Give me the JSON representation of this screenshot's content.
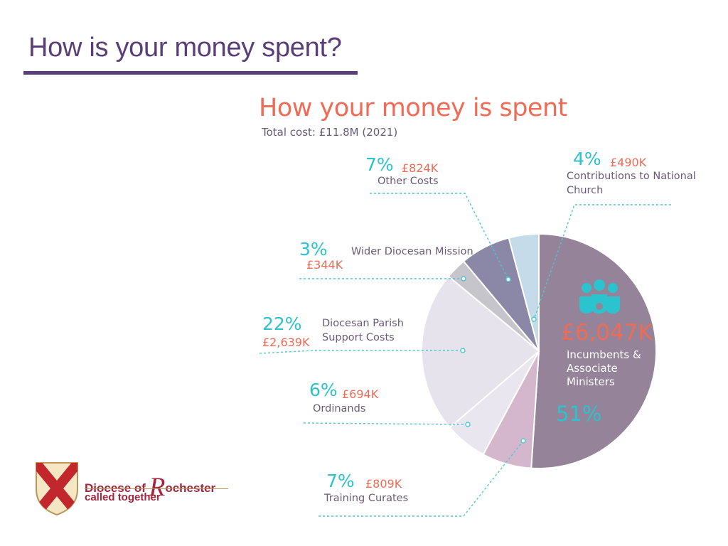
{
  "slide": {
    "title": "How is your money spent?"
  },
  "logo": {
    "text_prefix": "Diocese of ",
    "text_initial": "R",
    "text_rest": "ochester",
    "tagline": "called together"
  },
  "colors": {
    "accent_purple": "#5a3e7a",
    "orange": "#ef6b55",
    "teal": "#2bc3cd"
  },
  "chart_data": {
    "type": "pie",
    "title": "How your money is spent",
    "subtitle": "Total cost: £11.8M (2021)",
    "total": "£11.8M",
    "year": "2021",
    "slices": [
      {
        "label": "Incumbents & Associate Ministers",
        "percent": 51,
        "value_k": 6047,
        "pct_label": "51%",
        "amt_label": "£6,047K",
        "color": "#958399"
      },
      {
        "label": "Training Curates",
        "percent": 7,
        "value_k": 809,
        "pct_label": "7%",
        "amt_label": "£809K",
        "color": "#d4b7cc"
      },
      {
        "label": "Ordinands",
        "percent": 6,
        "value_k": 694,
        "pct_label": "6%",
        "amt_label": "£694K",
        "color": "#e9e6f0"
      },
      {
        "label": "Diocesan Parish Support Costs",
        "percent": 22,
        "value_k": 2639,
        "pct_label": "22%",
        "amt_label": "£2,639K",
        "color": "#e6e3ec"
      },
      {
        "label": "Wider Diocesan Mission",
        "percent": 3,
        "value_k": 344,
        "pct_label": "3%",
        "amt_label": "£344K",
        "color": "#c7c5cc"
      },
      {
        "label": "Other Costs",
        "percent": 7,
        "value_k": 824,
        "pct_label": "7%",
        "amt_label": "£824K",
        "color": "#8a88a6"
      },
      {
        "label": "Contributions to National Church",
        "percent": 4,
        "value_k": 490,
        "pct_label": "4%",
        "amt_label": "£490K",
        "color": "#c5dbea"
      }
    ],
    "annotations": {
      "incumbents": {
        "amount": "£6,047K",
        "label_lines": [
          "Incumbents &",
          "Associate",
          "Ministers"
        ],
        "percent": "51%"
      },
      "curates": {
        "percent": "7%",
        "amount": "£809K",
        "label": "Training Curates"
      },
      "ordinands": {
        "percent": "6%",
        "amount": "£694K",
        "label": "Ordinands"
      },
      "parish": {
        "percent": "22%",
        "amount": "£2,639K",
        "label_lines": [
          "Diocesan Parish",
          "Support Costs"
        ]
      },
      "mission": {
        "percent": "3%",
        "amount": "£344K",
        "label": "Wider Diocesan Mission"
      },
      "other": {
        "percent": "7%",
        "amount": "£824K",
        "label": "Other Costs"
      },
      "national": {
        "percent": "4%",
        "amount": "£490K",
        "label_lines": [
          "Contributions to National",
          "Church"
        ]
      }
    }
  }
}
